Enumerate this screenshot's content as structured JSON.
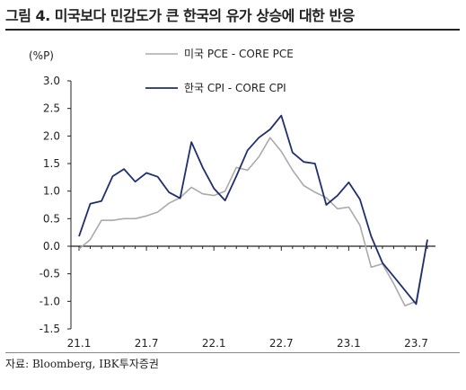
{
  "figure": {
    "title": "그림 4. 미국보다 민감도가 큰 한국의 유가 상승에 대한 반응",
    "source": "자료: Bloomberg, IBK투자증권"
  },
  "chart_data": {
    "type": "line",
    "ylabel": "(%P)",
    "ylim": [
      -1.5,
      3.0
    ],
    "yticks": [
      3.0,
      2.5,
      2.0,
      1.5,
      1.0,
      0.5,
      0.0,
      -0.5,
      -1.0,
      -1.5
    ],
    "ytick_labels": [
      "3.0",
      "2.5",
      "2.0",
      "1.5",
      "1.0",
      "0.5",
      "0.0",
      "-0.5",
      "-1.0",
      "-1.5"
    ],
    "x_labels": [
      "21.1",
      "21.7",
      "22.1",
      "22.7",
      "23.1",
      "23.7"
    ],
    "x_label_index": [
      0,
      6,
      12,
      18,
      24,
      30
    ],
    "x": [
      "21.1",
      "21.2",
      "21.3",
      "21.4",
      "21.5",
      "21.6",
      "21.7",
      "21.8",
      "21.9",
      "21.10",
      "21.11",
      "21.12",
      "22.1",
      "22.2",
      "22.3",
      "22.4",
      "22.5",
      "22.6",
      "22.7",
      "22.8",
      "22.9",
      "22.10",
      "22.11",
      "22.12",
      "23.1",
      "23.2",
      "23.3",
      "23.4",
      "23.5",
      "23.6",
      "23.7",
      "23.8"
    ],
    "legend_placement": "top-center",
    "series": [
      {
        "name": "미국 PCE - CORE PCE",
        "color": "#aaaaaa",
        "values": [
          -0.05,
          0.12,
          0.47,
          0.47,
          0.5,
          0.5,
          0.55,
          0.62,
          0.78,
          0.88,
          1.07,
          0.95,
          0.92,
          1.0,
          1.43,
          1.38,
          1.62,
          1.97,
          1.72,
          1.38,
          1.1,
          0.98,
          0.88,
          0.68,
          0.71,
          0.38,
          -0.38,
          -0.32,
          -0.68,
          -1.08,
          -1.0,
          0.12
        ]
      },
      {
        "name": "한국 CPI - CORE CPI",
        "color": "#1f2f6e",
        "values": [
          0.18,
          0.77,
          0.82,
          1.27,
          1.4,
          1.17,
          1.33,
          1.26,
          0.98,
          0.87,
          1.89,
          1.43,
          1.05,
          0.83,
          1.27,
          1.74,
          1.97,
          2.12,
          2.37,
          1.7,
          1.53,
          1.5,
          0.75,
          0.92,
          1.16,
          0.85,
          0.18,
          -0.3,
          -0.55,
          -0.8,
          -1.05,
          0.12
        ]
      }
    ]
  }
}
